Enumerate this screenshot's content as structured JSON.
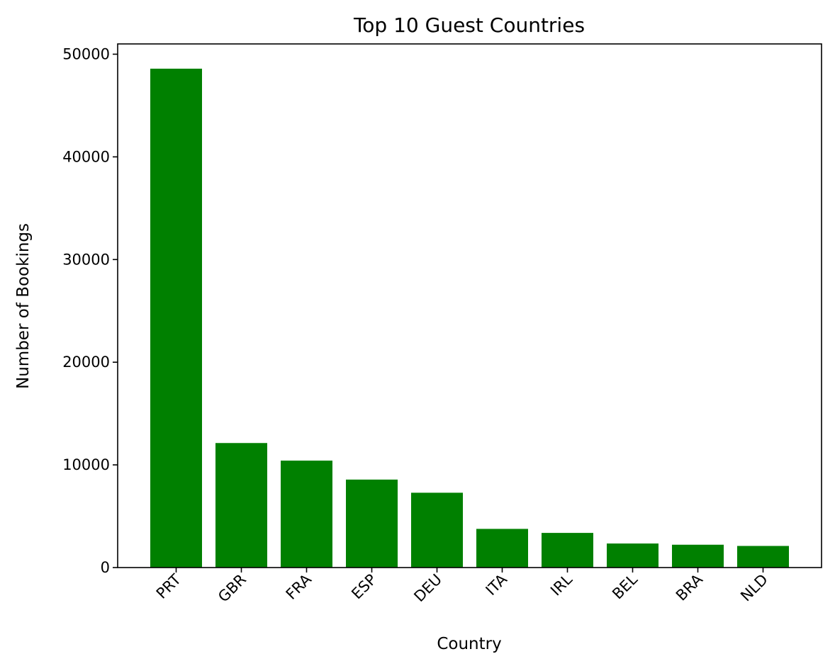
{
  "chart_data": {
    "type": "bar",
    "title": "Top 10 Guest Countries",
    "xlabel": "Country",
    "ylabel": "Number of Bookings",
    "categories": [
      "PRT",
      "GBR",
      "FRA",
      "ESP",
      "DEU",
      "ITA",
      "IRL",
      "BEL",
      "BRA",
      "NLD"
    ],
    "values": [
      48590,
      12129,
      10415,
      8568,
      7287,
      3766,
      3375,
      2342,
      2224,
      2104
    ],
    "ylim": [
      0,
      51000
    ],
    "yticks": [
      0,
      10000,
      20000,
      30000,
      40000,
      50000
    ],
    "ytick_labels": [
      "0",
      "10000",
      "20000",
      "30000",
      "40000",
      "50000"
    ],
    "xtick_rotation": 45,
    "bar_color": "#008000",
    "grid": false,
    "legend": "none"
  }
}
